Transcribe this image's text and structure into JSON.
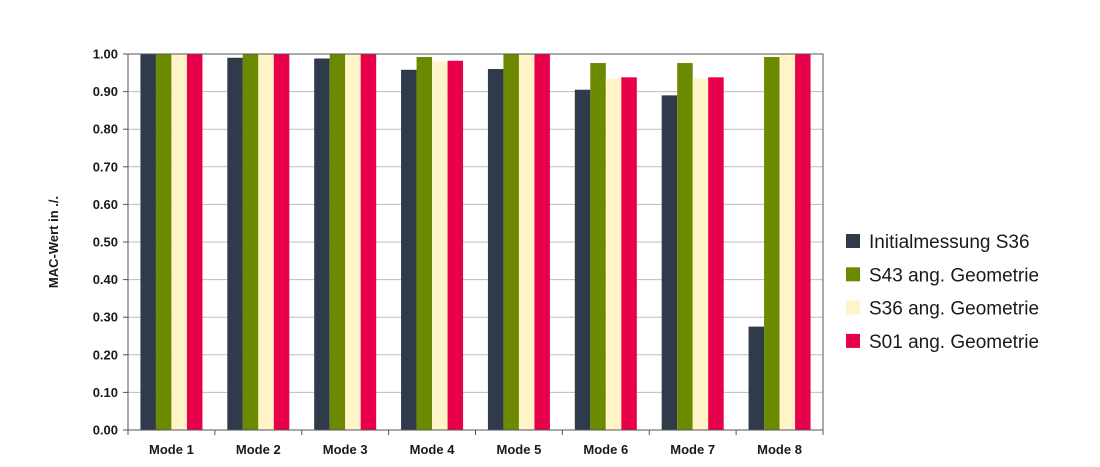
{
  "chart_data": {
    "type": "bar",
    "title": "",
    "xlabel": "",
    "ylabel": "MAC-Wert in ./.",
    "ylim": [
      0,
      1
    ],
    "yticks": [
      "0.00",
      "0.10",
      "0.20",
      "0.30",
      "0.40",
      "0.50",
      "0.60",
      "0.70",
      "0.80",
      "0.90",
      "1.00"
    ],
    "grid": "horizontal",
    "legend_position": "right",
    "categories": [
      "Mode 1",
      "Mode 2",
      "Mode 3",
      "Mode 4",
      "Mode 5",
      "Mode 6",
      "Mode 7",
      "Mode 8"
    ],
    "series": [
      {
        "name": "Initialmessung S36",
        "color": "#2f3a4b",
        "values": [
          1.0,
          0.99,
          0.988,
          0.958,
          0.96,
          0.905,
          0.89,
          0.275
        ]
      },
      {
        "name": "S43 ang. Geometrie",
        "color": "#6b8a00",
        "values": [
          1.0,
          1.0,
          1.0,
          0.992,
          1.0,
          0.976,
          0.976,
          0.992
        ]
      },
      {
        "name": "S36 ang. Geometrie",
        "color": "#fff4c8",
        "values": [
          1.0,
          1.0,
          1.0,
          0.98,
          1.0,
          0.935,
          0.935,
          1.0
        ]
      },
      {
        "name": "S01 ang. Geometrie",
        "color": "#e8004a",
        "values": [
          1.0,
          1.0,
          1.0,
          0.982,
          1.0,
          0.938,
          0.938,
          1.0
        ]
      }
    ]
  }
}
